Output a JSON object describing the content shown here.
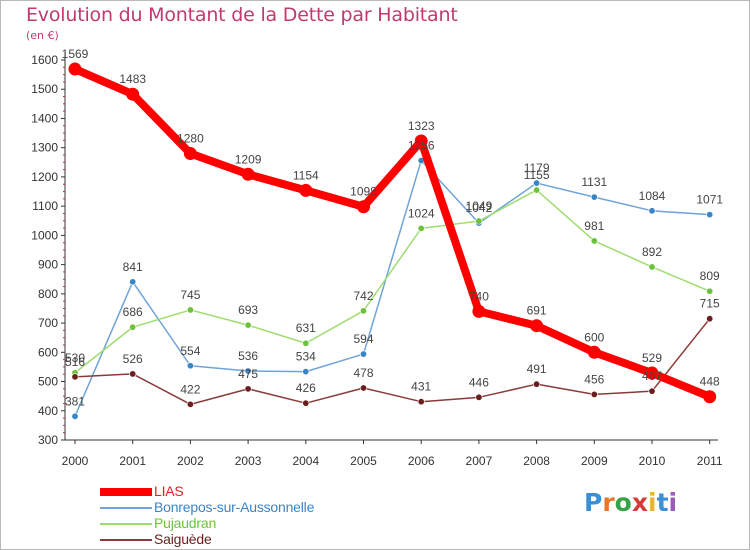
{
  "header": {
    "title": "Evolution du Montant de la Dette par Habitant",
    "unit": "(en €)"
  },
  "brand": {
    "text": "Proxiti",
    "letter_colors": [
      "#3b8fd6",
      "#e8792b",
      "#37a348",
      "#d83a3a",
      "#e8b52b",
      "#3b8fd6",
      "#9a5cb8"
    ]
  },
  "chart_data": {
    "type": "line",
    "title": "Evolution du Montant de la Dette par Habitant",
    "subtitle": "(en €)",
    "xlabel": "",
    "ylabel": "",
    "x": [
      "2000",
      "2001",
      "2002",
      "2003",
      "2004",
      "2005",
      "2006",
      "2007",
      "2008",
      "2009",
      "2010",
      "2011"
    ],
    "ylim": [
      300,
      1600
    ],
    "yticks": [
      300,
      400,
      500,
      600,
      700,
      800,
      900,
      1000,
      1100,
      1200,
      1300,
      1400,
      1500,
      1600
    ],
    "grid": false,
    "legend": "bottom-left",
    "series": [
      {
        "name": "LIAS",
        "color": "#ff0000",
        "emphasis": "thick",
        "values": [
          1569,
          1483,
          1280,
          1209,
          1154,
          1098,
          1323,
          740,
          691,
          600,
          529,
          448
        ]
      },
      {
        "name": "Bonrepos-sur-Aussonnelle",
        "color": "#6fa3d9",
        "point_color": "#3a85c8",
        "values": [
          381,
          841,
          554,
          536,
          534,
          594,
          1256,
          1042,
          1179,
          1131,
          1084,
          1071
        ]
      },
      {
        "name": "Pujaudran",
        "color": "#9fdc6e",
        "point_color": "#6cc23c",
        "values": [
          530,
          686,
          745,
          693,
          631,
          742,
          1024,
          1049,
          1155,
          981,
          892,
          809
        ]
      },
      {
        "name": "Saiguède",
        "color": "#8b3a3a",
        "point_color": "#6b1e1e",
        "values": [
          516,
          526,
          422,
          475,
          426,
          478,
          431,
          446,
          491,
          456,
          467,
          715
        ]
      }
    ]
  }
}
